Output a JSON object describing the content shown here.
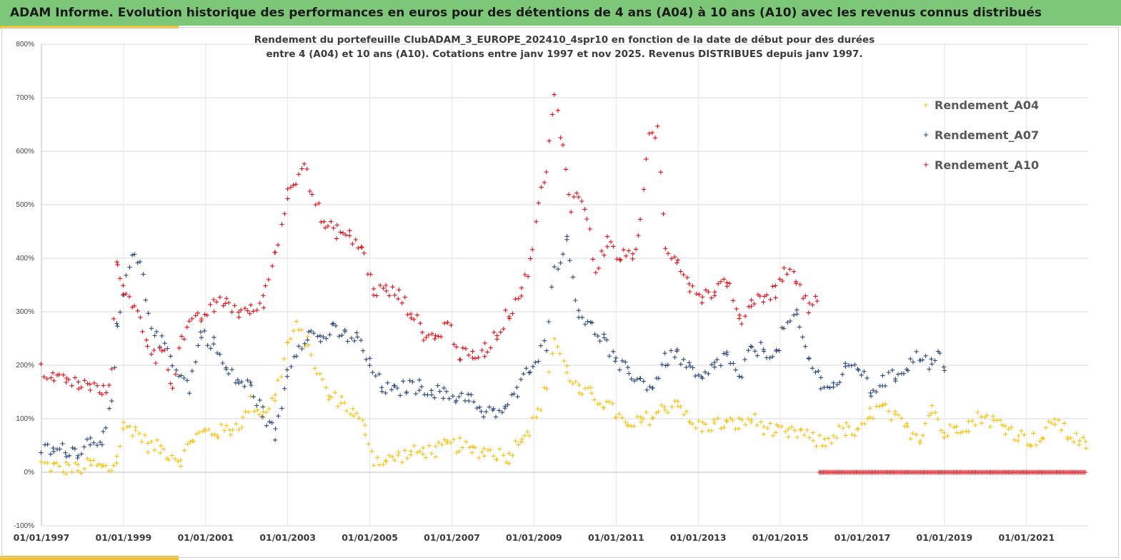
{
  "banner": {
    "title": "ADAM Informe. Evolution historique des performances en euros pour des détentions de 4 ans (A04) à 10 ans (A10) avec les revenus connus distribués"
  },
  "colors": {
    "banner_bg": "#7dc878",
    "accent": "#f2c230",
    "A04": "#f5c314",
    "A07": "#2f4a7c",
    "A10": "#e3121b"
  },
  "chart_data": {
    "type": "scatter",
    "title_lines": [
      "Rendement du portefeuille ClubADAM_3_EUROPE_202410_4spr10  en fonction de la date de début pour des durées",
      "entre 4 (A04) et 10 ans (A10). Cotations  entre janv 1997 et nov 2025. Revenus DISTRIBUES depuis janv 1997."
    ],
    "xlabel": "",
    "ylabel": "",
    "ylim": [
      -100,
      800
    ],
    "yticks": [
      -100,
      0,
      100,
      200,
      300,
      400,
      500,
      600,
      700,
      800
    ],
    "ytick_labels": [
      "-100%",
      "0%",
      "100%",
      "200%",
      "300%",
      "400%",
      "500%",
      "600%",
      "700%",
      "800%"
    ],
    "xlim": [
      1997.0,
      2022.5
    ],
    "xticks": [
      1997,
      1999,
      2001,
      2003,
      2005,
      2007,
      2009,
      2011,
      2013,
      2015,
      2017,
      2019,
      2021
    ],
    "xtick_labels": [
      "01/01/1997",
      "01/01/1999",
      "01/01/2001",
      "01/01/2003",
      "01/01/2005",
      "01/01/2007",
      "01/01/2009",
      "01/01/2011",
      "01/01/2013",
      "01/01/2015",
      "01/01/2017",
      "01/01/2019",
      "01/01/2021"
    ],
    "grid": true,
    "marker": "+",
    "legend_position": "top-right",
    "series": [
      {
        "name": "Rendement_A04",
        "color": "#f5c314",
        "x": [
          1997.0,
          1997.3,
          1997.6,
          1997.9,
          1998.2,
          1998.5,
          1998.7,
          1998.85,
          1999.0,
          1999.3,
          1999.6,
          1999.9,
          2000.1,
          2000.4,
          2000.7,
          2001.0,
          2001.3,
          2001.6,
          2001.9,
          2002.1,
          2002.4,
          2002.7,
          2003.0,
          2003.2,
          2003.5,
          2003.7,
          2004.0,
          2004.3,
          2004.6,
          2004.9,
          2005.1,
          2005.4,
          2005.7,
          2006.0,
          2006.3,
          2006.6,
          2006.9,
          2007.2,
          2007.5,
          2007.8,
          2008.1,
          2008.4,
          2008.7,
          2008.9,
          2009.1,
          2009.3,
          2009.5,
          2009.8,
          2010.1,
          2010.4,
          2010.7,
          2011.0,
          2011.3,
          2011.6,
          2011.9,
          2012.2,
          2012.5,
          2012.8,
          2013.1,
          2013.4,
          2013.7,
          2014.0,
          2014.3,
          2014.6,
          2014.9,
          2015.2,
          2015.5,
          2015.8,
          2016.1,
          2016.3,
          2016.6,
          2016.9,
          2017.2,
          2017.5,
          2017.8,
          2018.1,
          2018.4,
          2018.7,
          2019.0,
          2019.3,
          2019.6,
          2019.9,
          2020.2,
          2020.5,
          2020.8,
          2021.1,
          2021.4,
          2021.7,
          2022.0,
          2022.3,
          2022.45
        ],
        "y": [
          15,
          10,
          8,
          5,
          15,
          8,
          5,
          25,
          85,
          80,
          50,
          45,
          35,
          25,
          65,
          75,
          75,
          80,
          95,
          130,
          110,
          140,
          240,
          270,
          240,
          190,
          140,
          135,
          110,
          80,
          25,
          20,
          30,
          35,
          40,
          40,
          50,
          50,
          40,
          40,
          35,
          30,
          70,
          80,
          110,
          160,
          250,
          190,
          150,
          145,
          130,
          110,
          80,
          95,
          105,
          120,
          135,
          90,
          85,
          90,
          90,
          90,
          100,
          85,
          75,
          70,
          75,
          60,
          55,
          70,
          80,
          70,
          110,
          120,
          100,
          80,
          65,
          125,
          70,
          85,
          90,
          105,
          95,
          85,
          70,
          60,
          65,
          100,
          70,
          60,
          45
        ]
      },
      {
        "name": "Rendement_A07",
        "color": "#2f4a7c",
        "x": [
          1997.0,
          1997.3,
          1997.6,
          1997.9,
          1998.2,
          1998.5,
          1998.7,
          1998.85,
          1999.0,
          1999.2,
          1999.4,
          1999.6,
          1999.8,
          2000.0,
          2000.2,
          2000.4,
          2000.6,
          2000.9,
          2001.2,
          2001.5,
          2001.8,
          2002.1,
          2002.4,
          2002.7,
          2003.0,
          2003.2,
          2003.5,
          2003.8,
          2004.1,
          2004.4,
          2004.7,
          2005.0,
          2005.3,
          2005.6,
          2005.9,
          2006.2,
          2006.5,
          2006.8,
          2007.1,
          2007.4,
          2007.7,
          2008.0,
          2008.3,
          2008.6,
          2008.9,
          2009.1,
          2009.3,
          2009.5,
          2009.8,
          2010.1,
          2010.4,
          2010.7,
          2011.0,
          2011.3,
          2011.6,
          2011.9,
          2012.2,
          2012.5,
          2012.8,
          2013.1,
          2013.4,
          2013.7,
          2014.0,
          2014.3,
          2014.6,
          2014.9,
          2015.1,
          2015.4,
          2015.7,
          2016.0,
          2016.3,
          2016.6,
          2016.9,
          2017.2,
          2017.5,
          2017.8,
          2018.1,
          2018.4,
          2018.7,
          2018.9,
          2019.0
        ],
        "y": [
          45,
          40,
          42,
          40,
          60,
          65,
          120,
          270,
          330,
          400,
          390,
          300,
          250,
          240,
          210,
          180,
          160,
          260,
          240,
          190,
          170,
          160,
          110,
          70,
          190,
          230,
          260,
          250,
          265,
          255,
          250,
          200,
          160,
          150,
          160,
          160,
          155,
          145,
          140,
          145,
          110,
          110,
          120,
          150,
          200,
          220,
          240,
          380,
          430,
          300,
          270,
          250,
          200,
          190,
          170,
          160,
          210,
          220,
          190,
          170,
          200,
          220,
          170,
          230,
          230,
          220,
          270,
          290,
          210,
          170,
          160,
          190,
          200,
          150,
          170,
          180,
          200,
          220,
          200,
          220,
          190
        ]
      },
      {
        "name": "Rendement_A10",
        "color": "#e3121b",
        "x": [
          1997.0,
          1997.3,
          1997.6,
          1997.9,
          1998.2,
          1998.5,
          1998.7,
          1998.85,
          1999.0,
          1999.2,
          1999.4,
          1999.6,
          1999.8,
          2000.0,
          2000.2,
          2000.4,
          2000.6,
          2000.9,
          2001.2,
          2001.5,
          2001.8,
          2002.1,
          2002.4,
          2002.7,
          2003.0,
          2003.2,
          2003.4,
          2003.6,
          2003.9,
          2004.2,
          2004.5,
          2004.8,
          2005.1,
          2005.4,
          2005.7,
          2006.0,
          2006.3,
          2006.6,
          2006.9,
          2007.2,
          2007.5,
          2007.8,
          2008.1,
          2008.4,
          2008.7,
          2008.9,
          2009.1,
          2009.3,
          2009.5,
          2009.7,
          2009.9,
          2010.1,
          2010.3,
          2010.5,
          2010.8,
          2011.1,
          2011.4,
          2011.6,
          2011.8,
          2012.0,
          2012.2,
          2012.5,
          2012.8,
          2013.1,
          2013.4,
          2013.7,
          2014.0,
          2014.3,
          2014.6,
          2014.9,
          2015.1,
          2015.4,
          2015.7,
          2015.9
        ],
        "y": [
          190,
          180,
          170,
          165,
          160,
          150,
          180,
          400,
          340,
          310,
          290,
          240,
          215,
          230,
          160,
          250,
          270,
          290,
          310,
          320,
          300,
          300,
          320,
          410,
          520,
          550,
          590,
          520,
          460,
          450,
          440,
          420,
          340,
          340,
          330,
          300,
          260,
          250,
          280,
          220,
          215,
          230,
          260,
          300,
          340,
          390,
          500,
          560,
          700,
          610,
          500,
          520,
          480,
          380,
          430,
          400,
          410,
          460,
          620,
          640,
          420,
          400,
          350,
          330,
          340,
          360,
          280,
          320,
          330,
          340,
          380,
          360,
          310,
          320
        ]
      },
      {
        "name": "Rendement_A10 (zero segment)",
        "color": "#e3121b",
        "x_range": [
          2015.95,
          2022.45
        ],
        "y_constant": 0
      }
    ]
  }
}
